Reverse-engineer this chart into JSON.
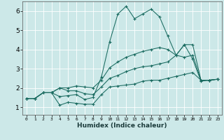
{
  "xlabel": "Humidex (Indice chaleur)",
  "bg_color": "#cce8e8",
  "grid_color": "#ffffff",
  "line_color": "#1a6b60",
  "xlim": [
    -0.5,
    23.5
  ],
  "ylim": [
    0.6,
    6.5
  ],
  "xticks": [
    0,
    1,
    2,
    3,
    4,
    5,
    6,
    7,
    8,
    9,
    10,
    11,
    12,
    13,
    14,
    15,
    16,
    17,
    18,
    19,
    20,
    21,
    22,
    23
  ],
  "yticks": [
    1,
    2,
    3,
    4,
    5,
    6
  ],
  "lines": [
    {
      "x": [
        0,
        1,
        2,
        3,
        4,
        5,
        6,
        7,
        8,
        9,
        10,
        11,
        12,
        13,
        14,
        15,
        16,
        17,
        18,
        19,
        20,
        21,
        22,
        23
      ],
      "y": [
        1.45,
        1.45,
        1.75,
        1.75,
        1.55,
        1.6,
        1.65,
        1.4,
        1.5,
        2.55,
        4.4,
        5.85,
        6.25,
        5.6,
        5.85,
        6.1,
        5.7,
        4.7,
        3.7,
        4.25,
        3.5,
        2.35,
        2.4,
        2.45
      ]
    },
    {
      "x": [
        0,
        1,
        2,
        3,
        4,
        5,
        6,
        7,
        8,
        9,
        10,
        11,
        12,
        13,
        14,
        15,
        16,
        17,
        18,
        19,
        20,
        21,
        22,
        23
      ],
      "y": [
        1.45,
        1.45,
        1.75,
        1.75,
        2.0,
        2.0,
        2.1,
        2.05,
        2.0,
        2.4,
        3.05,
        3.35,
        3.6,
        3.75,
        3.9,
        4.0,
        4.1,
        4.0,
        3.7,
        4.25,
        4.25,
        2.4,
        2.4,
        2.45
      ]
    },
    {
      "x": [
        0,
        1,
        2,
        3,
        4,
        5,
        6,
        7,
        8,
        9,
        10,
        11,
        12,
        13,
        14,
        15,
        16,
        17,
        18,
        19,
        20,
        21,
        22,
        23
      ],
      "y": [
        1.45,
        1.45,
        1.75,
        1.75,
        2.0,
        1.85,
        1.85,
        1.7,
        1.65,
        2.05,
        2.5,
        2.65,
        2.85,
        3.0,
        3.1,
        3.15,
        3.25,
        3.35,
        3.7,
        3.6,
        3.7,
        2.4,
        2.4,
        2.45
      ]
    },
    {
      "x": [
        0,
        1,
        2,
        3,
        4,
        5,
        6,
        7,
        8,
        9,
        10,
        11,
        12,
        13,
        14,
        15,
        16,
        17,
        18,
        19,
        20,
        21,
        22,
        23
      ],
      "y": [
        1.45,
        1.45,
        1.75,
        1.75,
        1.1,
        1.25,
        1.2,
        1.15,
        1.15,
        1.65,
        2.05,
        2.1,
        2.15,
        2.2,
        2.35,
        2.4,
        2.4,
        2.5,
        2.6,
        2.7,
        2.8,
        2.4,
        2.4,
        2.45
      ]
    }
  ]
}
